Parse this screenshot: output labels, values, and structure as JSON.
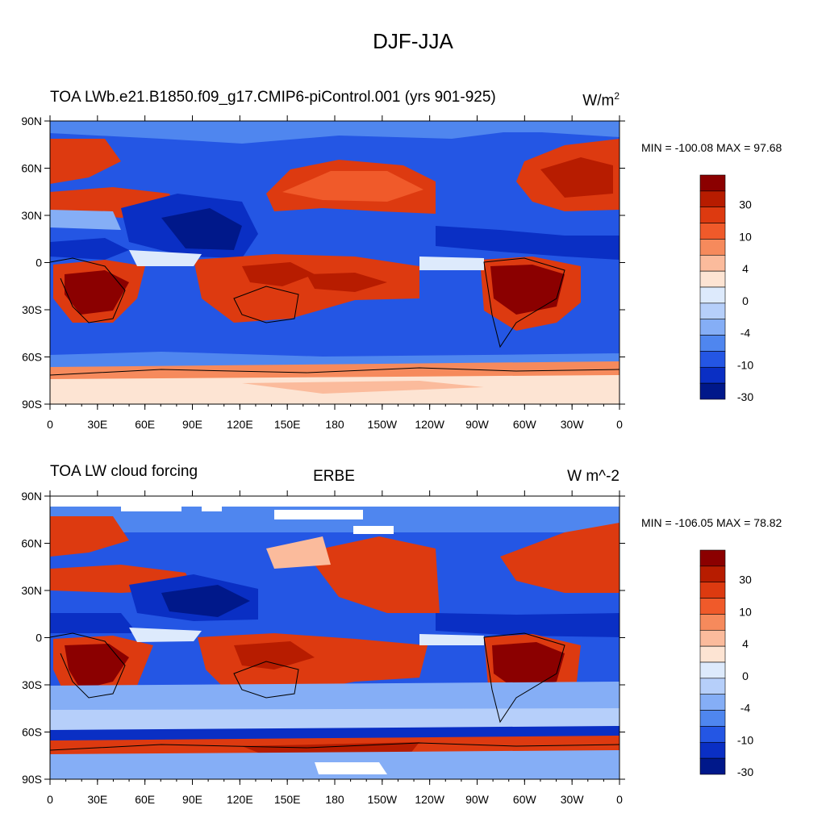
{
  "page_title": "DJF-JJA",
  "chart_data": [
    {
      "type": "heatmap",
      "variable": "TOA LW cloud forcing",
      "case": "b.e21.B1850.f09_g17.CMIP6-piControl.001 (yrs 901-925)",
      "overlap_text": "TOA LWb.e21.B1850.f09_g17.CMIP6-piControl.001 (yrs 901-925)",
      "units_base": "W/m",
      "units_sup": "2",
      "min_max": "MIN = -100.08 MAX =  97.68",
      "min": -100.08,
      "max": 97.68,
      "lon_ticks": [
        "0",
        "30E",
        "60E",
        "90E",
        "120E",
        "150E",
        "180",
        "150W",
        "120W",
        "90W",
        "60W",
        "30W",
        "0"
      ],
      "lat_ticks": [
        "90N",
        "60N",
        "30N",
        "0",
        "30S",
        "60S",
        "90S"
      ],
      "colorbar_labels": [
        "30",
        "10",
        "4",
        "0",
        "-4",
        "-10",
        "-30"
      ]
    },
    {
      "type": "heatmap",
      "variable": "TOA LW cloud forcing",
      "dataset": "ERBE",
      "units": "W m^-2",
      "min_max": "MIN = -106.05 MAX =  78.82",
      "min": -106.05,
      "max": 78.82,
      "lon_ticks": [
        "0",
        "30E",
        "60E",
        "90E",
        "120E",
        "150E",
        "180",
        "150W",
        "120W",
        "90W",
        "60W",
        "30W",
        "0"
      ],
      "lat_ticks": [
        "90N",
        "60N",
        "30N",
        "0",
        "30S",
        "60S",
        "90S"
      ],
      "colorbar_labels": [
        "30",
        "10",
        "4",
        "0",
        "-4",
        "-10",
        "-30"
      ]
    }
  ],
  "palette": [
    "#8b0000",
    "#b71c00",
    "#dd3a10",
    "#f05a2a",
    "#f68a5c",
    "#fbbb9c",
    "#fde4d3",
    "#ddeafc",
    "#b6cffa",
    "#85aef6",
    "#4f86ef",
    "#2456e4",
    "#0a2fc4",
    "#00188a"
  ]
}
